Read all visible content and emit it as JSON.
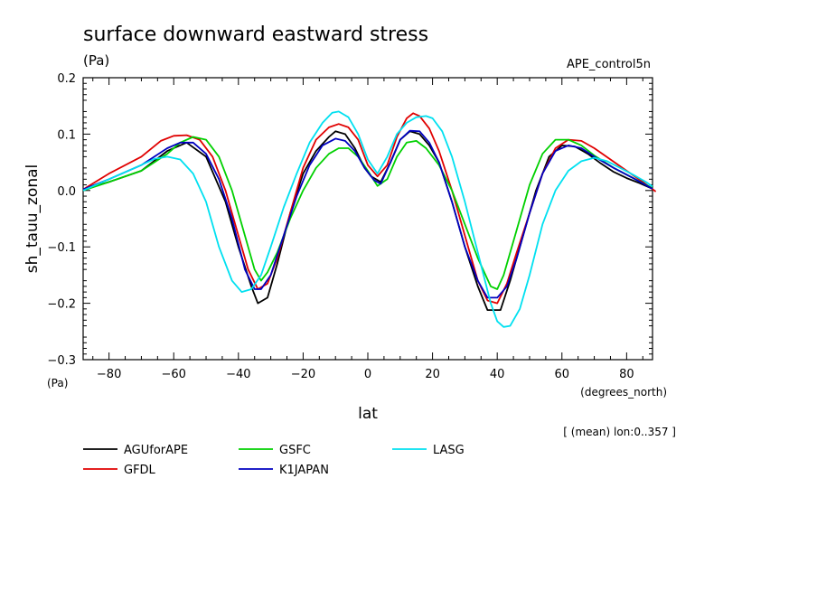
{
  "chart_data": {
    "type": "line",
    "title": "surface downward eastward stress",
    "subtitle_units": "(Pa)",
    "experiment": "APE_control5n",
    "xlabel": "lat",
    "xunits": "(degrees_north)",
    "ylabel": "sh_tauu_zonal",
    "yunits": "(Pa)",
    "xlim": [
      -88,
      88
    ],
    "ylim": [
      -0.3,
      0.2
    ],
    "xticks": [
      -80,
      -60,
      -40,
      -20,
      0,
      20,
      40,
      60,
      80
    ],
    "xtick_labels": [
      "−80",
      "−60",
      "−40",
      "−20",
      "0",
      "20",
      "40",
      "60",
      "80"
    ],
    "yticks": [
      -0.3,
      -0.2,
      -0.1,
      0.0,
      0.1,
      0.2
    ],
    "ytick_labels": [
      "−0.3",
      "−0.2",
      "−0.1",
      "0.0",
      "0.1",
      "0.2"
    ],
    "annotation": "[ (mean) lon:0..357 ]",
    "legend_position": "bottom",
    "series": [
      {
        "name": "AGUforAPE",
        "color": "#000000",
        "x": [
          -88,
          -80,
          -70,
          -62,
          -56,
          -50,
          -44,
          -40,
          -36,
          -34,
          -31,
          -28,
          -24,
          -20,
          -16,
          -12,
          -10,
          -7,
          -4,
          -1,
          1,
          4,
          7,
          10,
          13,
          16,
          19,
          22,
          26,
          30,
          34,
          37,
          41,
          44,
          48,
          52,
          56,
          60,
          64,
          68,
          72,
          76,
          80,
          84,
          88
        ],
        "y": [
          0.002,
          0.015,
          0.035,
          0.07,
          0.085,
          0.06,
          -0.02,
          -0.1,
          -0.17,
          -0.2,
          -0.19,
          -0.13,
          -0.04,
          0.03,
          0.07,
          0.095,
          0.105,
          0.1,
          0.075,
          0.04,
          0.025,
          0.015,
          0.05,
          0.09,
          0.105,
          0.1,
          0.08,
          0.05,
          -0.02,
          -0.1,
          -0.17,
          -0.212,
          -0.212,
          -0.16,
          -0.08,
          0.0,
          0.06,
          0.08,
          0.078,
          0.065,
          0.048,
          0.033,
          0.022,
          0.013,
          0.003
        ]
      },
      {
        "name": "GFDL",
        "color": "#e00000",
        "x": [
          -88,
          -80,
          -70,
          -64,
          -60,
          -56,
          -52,
          -48,
          -44,
          -40,
          -37,
          -34,
          -31,
          -28,
          -24,
          -20,
          -16,
          -12,
          -9,
          -6,
          -3,
          0,
          3,
          6,
          9,
          12,
          14,
          16,
          19,
          22,
          26,
          30,
          34,
          37,
          40,
          43,
          46,
          50,
          54,
          58,
          62,
          66,
          70,
          75,
          80,
          85,
          89
        ],
        "y": [
          0.002,
          0.03,
          0.06,
          0.088,
          0.097,
          0.098,
          0.09,
          0.06,
          0.0,
          -0.08,
          -0.14,
          -0.175,
          -0.165,
          -0.12,
          -0.04,
          0.04,
          0.09,
          0.112,
          0.118,
          0.112,
          0.09,
          0.045,
          0.025,
          0.045,
          0.095,
          0.128,
          0.137,
          0.132,
          0.11,
          0.07,
          0.0,
          -0.08,
          -0.16,
          -0.195,
          -0.2,
          -0.165,
          -0.11,
          -0.04,
          0.03,
          0.075,
          0.09,
          0.088,
          0.075,
          0.055,
          0.035,
          0.015,
          -0.002
        ]
      },
      {
        "name": "GSFC",
        "color": "#00d000",
        "x": [
          -88,
          -80,
          -70,
          -62,
          -58,
          -54,
          -50,
          -46,
          -42,
          -38,
          -35,
          -33,
          -31,
          -28,
          -24,
          -20,
          -16,
          -12,
          -9,
          -6,
          -3,
          0,
          3,
          6,
          9,
          12,
          15,
          18,
          22,
          26,
          30,
          34,
          38,
          40,
          42,
          46,
          50,
          54,
          58,
          62,
          66,
          70,
          76,
          80,
          84,
          88
        ],
        "y": [
          0.0,
          0.015,
          0.035,
          0.065,
          0.085,
          0.095,
          0.09,
          0.06,
          0.0,
          -0.08,
          -0.14,
          -0.16,
          -0.145,
          -0.11,
          -0.05,
          0.0,
          0.04,
          0.065,
          0.075,
          0.075,
          0.06,
          0.035,
          0.008,
          0.02,
          0.06,
          0.085,
          0.088,
          0.075,
          0.045,
          0.0,
          -0.06,
          -0.12,
          -0.17,
          -0.175,
          -0.15,
          -0.07,
          0.01,
          0.065,
          0.09,
          0.09,
          0.08,
          0.062,
          0.04,
          0.028,
          0.016,
          0.004
        ]
      },
      {
        "name": "K1JAPAN",
        "color": "#0000c0",
        "x": [
          -88,
          -80,
          -70,
          -62,
          -58,
          -54,
          -50,
          -46,
          -42,
          -38,
          -35,
          -33,
          -30,
          -26,
          -22,
          -18,
          -14,
          -10,
          -7,
          -4,
          -1,
          2,
          4,
          7,
          10,
          13,
          16,
          19,
          22,
          26,
          30,
          34,
          37,
          40,
          43,
          46,
          50,
          54,
          58,
          62,
          66,
          70,
          76,
          82,
          88
        ],
        "y": [
          0.002,
          0.02,
          0.045,
          0.075,
          0.085,
          0.085,
          0.065,
          0.02,
          -0.05,
          -0.14,
          -0.175,
          -0.175,
          -0.15,
          -0.08,
          -0.01,
          0.045,
          0.08,
          0.092,
          0.088,
          0.07,
          0.04,
          0.018,
          0.012,
          0.05,
          0.09,
          0.106,
          0.105,
          0.085,
          0.05,
          -0.02,
          -0.1,
          -0.16,
          -0.19,
          -0.19,
          -0.17,
          -0.12,
          -0.04,
          0.03,
          0.07,
          0.08,
          0.075,
          0.06,
          0.04,
          0.022,
          0.003
        ]
      },
      {
        "name": "LASG",
        "color": "#00e0f0",
        "x": [
          -88,
          -80,
          -72,
          -66,
          -62,
          -58,
          -54,
          -50,
          -46,
          -42,
          -39,
          -36,
          -33,
          -30,
          -26,
          -22,
          -18,
          -14,
          -11,
          -9,
          -6,
          -3,
          0,
          3,
          6,
          9,
          12,
          15,
          18,
          20,
          23,
          26,
          30,
          34,
          38,
          40,
          42,
          44,
          47,
          50,
          54,
          58,
          62,
          66,
          70,
          74,
          78,
          82,
          86,
          88
        ],
        "y": [
          0.0,
          0.02,
          0.04,
          0.056,
          0.06,
          0.055,
          0.03,
          -0.02,
          -0.1,
          -0.16,
          -0.18,
          -0.175,
          -0.15,
          -0.1,
          -0.03,
          0.03,
          0.085,
          0.12,
          0.138,
          0.14,
          0.13,
          0.1,
          0.055,
          0.03,
          0.06,
          0.1,
          0.12,
          0.13,
          0.132,
          0.128,
          0.105,
          0.06,
          -0.02,
          -0.11,
          -0.2,
          -0.232,
          -0.242,
          -0.24,
          -0.21,
          -0.15,
          -0.06,
          0.0,
          0.035,
          0.052,
          0.058,
          0.052,
          0.04,
          0.028,
          0.015,
          0.007
        ]
      }
    ]
  }
}
